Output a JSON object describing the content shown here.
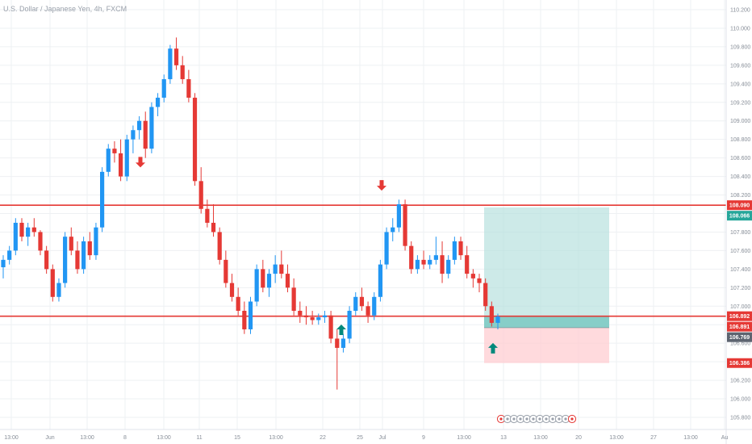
{
  "header": {
    "symbol_title": "U.S. Dollar / Japanese Yen, 4h, FXCM"
  },
  "chart_data": {
    "type": "candlestick",
    "title": "U.S. Dollar / Japanese Yen, 4h, FXCM",
    "ylim": [
      105.75,
      110.25
    ],
    "y_ticks": [
      "110.200",
      "110.000",
      "109.800",
      "109.600",
      "109.400",
      "109.200",
      "109.000",
      "108.800",
      "108.600",
      "108.400",
      "108.200",
      "108.000",
      "107.800",
      "107.600",
      "107.400",
      "107.200",
      "107.000",
      "106.800",
      "106.600",
      "106.400",
      "106.200",
      "106.000",
      "105.800"
    ],
    "x_ticks": [
      "13:00",
      "Jun",
      "13:00",
      "8",
      "13:00",
      "11",
      "15",
      "13:00",
      "22",
      "25",
      "Jul",
      "9",
      "13:00",
      "13",
      "13:00",
      "20",
      "13:00",
      "27",
      "13:00",
      "Au"
    ],
    "candles": [
      [
        107.42,
        107.55,
        107.3,
        107.5
      ],
      [
        107.5,
        107.65,
        107.45,
        107.6
      ],
      [
        107.6,
        107.95,
        107.55,
        107.9
      ],
      [
        107.9,
        107.95,
        107.7,
        107.75
      ],
      [
        107.75,
        107.9,
        107.65,
        107.85
      ],
      [
        107.85,
        107.95,
        107.75,
        107.8
      ],
      [
        107.8,
        107.82,
        107.55,
        107.6
      ],
      [
        107.6,
        107.65,
        107.35,
        107.4
      ],
      [
        107.4,
        107.45,
        107.05,
        107.1
      ],
      [
        107.1,
        107.3,
        107.05,
        107.25
      ],
      [
        107.25,
        107.8,
        107.2,
        107.75
      ],
      [
        107.75,
        107.85,
        107.55,
        107.6
      ],
      [
        107.6,
        107.7,
        107.35,
        107.4
      ],
      [
        107.4,
        107.75,
        107.35,
        107.7
      ],
      [
        107.7,
        107.8,
        107.5,
        107.55
      ],
      [
        107.55,
        107.9,
        107.5,
        107.85
      ],
      [
        107.85,
        108.5,
        107.8,
        108.45
      ],
      [
        108.45,
        108.75,
        108.4,
        108.7
      ],
      [
        108.7,
        108.78,
        108.55,
        108.65
      ],
      [
        108.65,
        108.8,
        108.35,
        108.4
      ],
      [
        108.4,
        108.85,
        108.35,
        108.8
      ],
      [
        108.8,
        108.95,
        108.65,
        108.9
      ],
      [
        108.9,
        109.05,
        108.8,
        109.0
      ],
      [
        109.0,
        109.1,
        108.6,
        108.7
      ],
      [
        108.7,
        109.2,
        108.65,
        109.15
      ],
      [
        109.15,
        109.3,
        109.05,
        109.25
      ],
      [
        109.25,
        109.5,
        109.2,
        109.45
      ],
      [
        109.45,
        109.82,
        109.4,
        109.78
      ],
      [
        109.78,
        109.9,
        109.55,
        109.6
      ],
      [
        109.6,
        109.7,
        109.4,
        109.45
      ],
      [
        109.45,
        109.55,
        109.2,
        109.25
      ],
      [
        109.25,
        109.3,
        108.3,
        108.35
      ],
      [
        108.35,
        108.5,
        108.0,
        108.05
      ],
      [
        108.05,
        108.15,
        107.85,
        107.9
      ],
      [
        107.9,
        108.1,
        107.75,
        107.8
      ],
      [
        107.8,
        107.85,
        107.45,
        107.5
      ],
      [
        107.5,
        107.6,
        107.2,
        107.25
      ],
      [
        107.25,
        107.35,
        107.05,
        107.1
      ],
      [
        107.1,
        107.2,
        106.9,
        106.95
      ],
      [
        106.95,
        107.05,
        106.7,
        106.75
      ],
      [
        106.75,
        107.1,
        106.7,
        107.05
      ],
      [
        107.05,
        107.45,
        107.0,
        107.4
      ],
      [
        107.4,
        107.5,
        107.15,
        107.2
      ],
      [
        107.2,
        107.4,
        107.1,
        107.35
      ],
      [
        107.35,
        107.55,
        107.25,
        107.45
      ],
      [
        107.45,
        107.6,
        107.3,
        107.35
      ],
      [
        107.35,
        107.45,
        107.15,
        107.2
      ],
      [
        107.2,
        107.3,
        106.9,
        106.95
      ],
      [
        106.95,
        107.05,
        106.82,
        106.9
      ],
      [
        106.9,
        107.0,
        106.8,
        106.88
      ],
      [
        106.88,
        106.95,
        106.8,
        106.85
      ],
      [
        106.85,
        106.92,
        106.8,
        106.88
      ],
      [
        106.88,
        106.95,
        106.82,
        106.9
      ],
      [
        106.9,
        106.95,
        106.6,
        106.65
      ],
      [
        106.65,
        106.75,
        106.1,
        106.55
      ],
      [
        106.55,
        106.7,
        106.5,
        106.65
      ],
      [
        106.65,
        107.0,
        106.6,
        106.95
      ],
      [
        106.95,
        107.15,
        106.9,
        107.1
      ],
      [
        107.1,
        107.2,
        106.95,
        107.0
      ],
      [
        107.0,
        107.05,
        106.82,
        106.9
      ],
      [
        106.9,
        107.15,
        106.85,
        107.1
      ],
      [
        107.1,
        107.5,
        107.05,
        107.45
      ],
      [
        107.45,
        107.85,
        107.4,
        107.8
      ],
      [
        107.8,
        107.95,
        107.7,
        107.85
      ],
      [
        107.85,
        108.15,
        107.8,
        108.1
      ],
      [
        108.1,
        108.15,
        107.6,
        107.65
      ],
      [
        107.65,
        107.7,
        107.35,
        107.4
      ],
      [
        107.4,
        107.55,
        107.35,
        107.5
      ],
      [
        107.5,
        107.6,
        107.4,
        107.45
      ],
      [
        107.45,
        107.55,
        107.4,
        107.5
      ],
      [
        107.5,
        107.75,
        107.45,
        107.55
      ],
      [
        107.55,
        107.7,
        107.25,
        107.35
      ],
      [
        107.35,
        107.55,
        107.3,
        107.5
      ],
      [
        107.5,
        107.75,
        107.45,
        107.7
      ],
      [
        107.7,
        107.75,
        107.5,
        107.55
      ],
      [
        107.55,
        107.65,
        107.3,
        107.35
      ],
      [
        107.35,
        107.4,
        107.2,
        107.3
      ],
      [
        107.3,
        107.35,
        107.15,
        107.25
      ],
      [
        107.25,
        107.3,
        106.95,
        107.0
      ],
      [
        107.0,
        107.05,
        106.78,
        106.82
      ],
      [
        106.82,
        106.92,
        106.75,
        106.89
      ]
    ],
    "levels": [
      {
        "label": "108.090",
        "color": "#e53935"
      },
      {
        "label": "106.892",
        "color": "#e53935"
      }
    ],
    "price_tags": [
      {
        "label": "108.090",
        "bg": "#e53935",
        "fg": "#ffffff"
      },
      {
        "label": "108.066",
        "bg": "#26a69a",
        "fg": "#ffffff"
      },
      {
        "label": "106.892",
        "bg": "#e53935",
        "fg": "#ffffff"
      },
      {
        "label": "106.891",
        "bg": "#e53935",
        "fg": "#ffffff"
      },
      {
        "label": "106.769",
        "bg": "#5d6470",
        "fg": "#ffffff"
      },
      {
        "label": "106.386",
        "bg": "#e53935",
        "fg": "#ffffff"
      }
    ],
    "position_tool": {
      "direction": "long",
      "entry": 106.769,
      "target": 108.066,
      "stop": 106.386,
      "profit_color": "#b2dfdb",
      "loss_color": "#ffcdd2"
    },
    "signals": [
      {
        "kind": "down-arrow",
        "color": "#e53935",
        "price": 108.55
      },
      {
        "kind": "down-arrow",
        "color": "#e53935",
        "price": 108.3
      },
      {
        "kind": "up-arrow",
        "color": "#00897b",
        "price": 106.75
      },
      {
        "kind": "up-arrow",
        "color": "#00897b",
        "price": 106.55
      }
    ],
    "colors": {
      "up": "#2196f3",
      "down": "#e53935",
      "grid": "#eef0f3",
      "axis": "#e0e3eb"
    }
  }
}
